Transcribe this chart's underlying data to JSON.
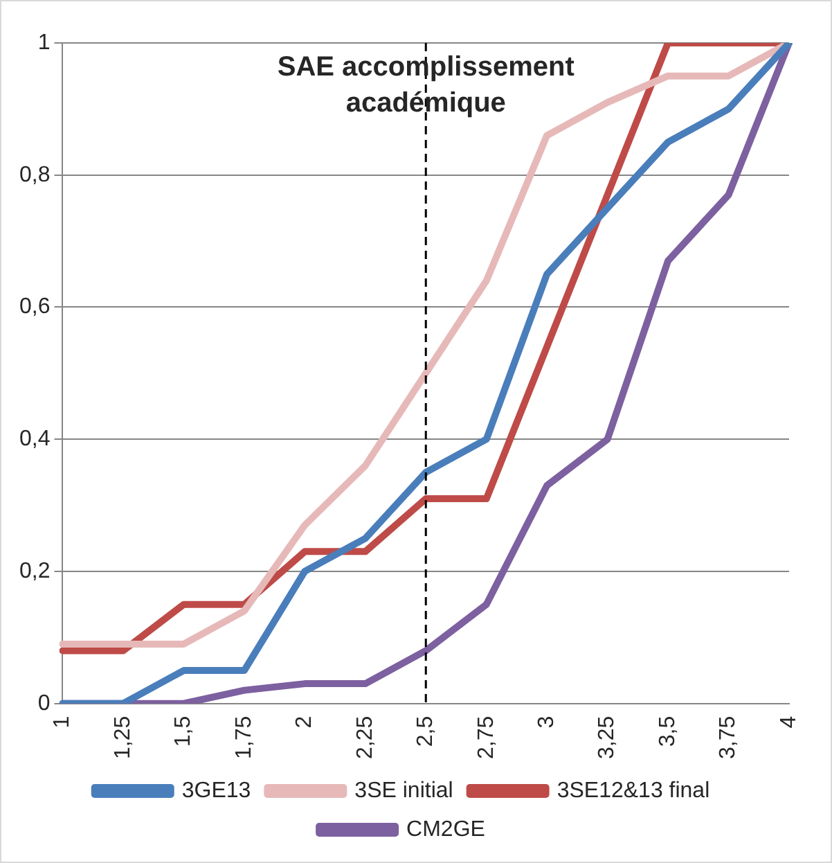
{
  "chart_data": {
    "type": "line",
    "categories": [
      "1",
      "1,25",
      "1,5",
      "1,75",
      "2",
      "2,25",
      "2,5",
      "2,75",
      "3",
      "3,25",
      "3,5",
      "3,75",
      "4"
    ],
    "series": [
      {
        "name": "3GE13",
        "color": "#4a7ebb",
        "values": [
          0,
          0,
          0.05,
          0.05,
          0.2,
          0.25,
          0.35,
          0.4,
          0.65,
          0.75,
          0.85,
          0.9,
          1
        ]
      },
      {
        "name": "3SE initial",
        "color": "#e6b9b8",
        "values": [
          0.09,
          0.09,
          0.09,
          0.14,
          0.27,
          0.36,
          0.5,
          0.64,
          0.86,
          0.91,
          0.95,
          0.95,
          1
        ]
      },
      {
        "name": "3SE12&13 final",
        "color": "#be4b48",
        "values": [
          0.08,
          0.08,
          0.15,
          0.15,
          0.23,
          0.23,
          0.31,
          0.31,
          0.54,
          0.77,
          1,
          1,
          1
        ]
      },
      {
        "name": "CM2GE",
        "color": "#7d60a0",
        "values": [
          0,
          0,
          0,
          0.02,
          0.03,
          0.03,
          0.08,
          0.15,
          0.33,
          0.4,
          0.67,
          0.77,
          1
        ]
      }
    ],
    "ylim": [
      0,
      1
    ],
    "yticks": [
      0,
      {
        "value": 0.2,
        "label": "0,2"
      },
      {
        "value": 0.4,
        "label": "0,4"
      },
      {
        "value": 0.6,
        "label": "0,6"
      },
      {
        "value": 0.8,
        "label": "0,8"
      },
      1
    ],
    "ref_lines": [
      {
        "axis": "x",
        "value": "2,5",
        "label": "SAE accomplissement\nacadémique",
        "line_style": "dashed",
        "color": "#000000"
      }
    ],
    "grid": "y",
    "legend": "bottom",
    "marker": "none",
    "line_style": "solid"
  }
}
